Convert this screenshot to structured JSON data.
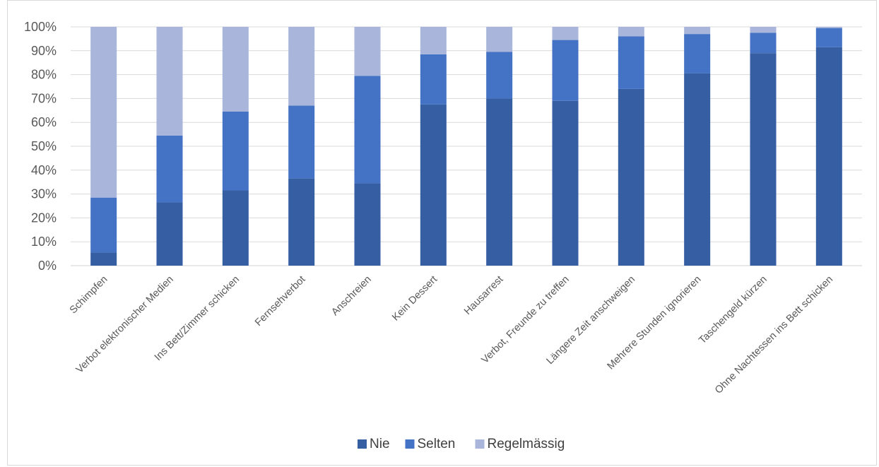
{
  "chart_data": {
    "type": "bar",
    "stacked": true,
    "percent": true,
    "categories": [
      "Schimpfen",
      "Verbot elektronischer Medien",
      "Ins Bett/Zimmer schicken",
      "Fernsehverbot",
      "Anschreien",
      "Kein Dessert",
      "Hausarrest",
      "Verbot, Freunde zu treffen",
      "Längere Zeit anschweigen",
      "Mehrere Stunden ignorieren",
      "Taschengeld kürzen",
      "Ohne Nachtessen ins Bett schicken"
    ],
    "series": [
      {
        "name": "Nie",
        "color": "#355ea3",
        "values": [
          5.5,
          26.5,
          31.5,
          36.5,
          34.5,
          67.5,
          70,
          69,
          74,
          80.5,
          89,
          91.5
        ]
      },
      {
        "name": "Selten",
        "color": "#4472c4",
        "values": [
          23,
          28,
          33,
          30.5,
          45,
          21,
          19.5,
          25.5,
          22,
          16.5,
          8.5,
          8
        ]
      },
      {
        "name": "Regelmässig",
        "color": "#a9b5da",
        "values": [
          71.5,
          45.5,
          35.5,
          33,
          20.5,
          11.5,
          10.5,
          5.5,
          4,
          3,
          2.5,
          0.5
        ]
      }
    ],
    "y_ticks": [
      "0%",
      "10%",
      "20%",
      "30%",
      "40%",
      "50%",
      "60%",
      "70%",
      "80%",
      "90%",
      "100%"
    ],
    "ylim": [
      0,
      100
    ],
    "grid": true,
    "legend_position": "bottom"
  }
}
